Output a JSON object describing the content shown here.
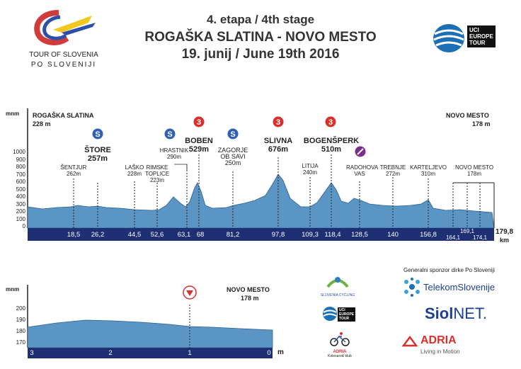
{
  "header": {
    "line1": "4. etapa / 4th stage",
    "line2": "ROGAŠKA SLATINA - NOVO MESTO",
    "line3": "19. junij / June 19th 2016",
    "tour_logo_line1": "TOUR OF SLOVENIA",
    "tour_logo_line2": "PO SLOVENIJI",
    "uci_logo_line1": "UCI",
    "uci_logo_line2": "EUROPE",
    "uci_logo_line3": "TOUR"
  },
  "profile": {
    "unit_label": "mnm",
    "y_ticks": [
      "1000",
      "900",
      "800",
      "700",
      "600",
      "500",
      "400",
      "300",
      "200",
      "100",
      "0"
    ],
    "start_name": "ROGAŠKA SLATINA",
    "start_alt": "228 m",
    "finish_name": "NOVO MESTO",
    "finish_alt": "178 m",
    "total_km": "179,8",
    "km_unit": "km",
    "km_marks": [
      "18,5",
      "26,2",
      "44,5",
      "52,6",
      "63,1",
      "68",
      "81,2",
      "97,8",
      "109,3",
      "118,4",
      "128,5",
      "140",
      "156,8"
    ],
    "km_marks_small": [
      "164,1",
      "169,1",
      "174,1"
    ],
    "places": [
      {
        "name": "ŠENTJUR",
        "alt": "262m"
      },
      {
        "name": "ŠTORE",
        "alt": "257m"
      },
      {
        "name": "LAŠKO",
        "alt": "228m"
      },
      {
        "name": "RIMSKE TOPLICE",
        "alt": "223m"
      },
      {
        "name": "HRASTNIK",
        "alt": "290m"
      },
      {
        "name": "BOBEN",
        "alt": "529m"
      },
      {
        "name": "ZAGORJE OB SAVI",
        "alt": "250m"
      },
      {
        "name": "SLIVNA",
        "alt": "676m"
      },
      {
        "name": "LITIJA",
        "alt": "240m"
      },
      {
        "name": "BOGENŠPERK",
        "alt": "510m"
      },
      {
        "name": "RADOHOVA VAS",
        "alt": ""
      },
      {
        "name": "TREBNJE",
        "alt": "272m"
      },
      {
        "name": "KARTELJEVO",
        "alt": "310m"
      },
      {
        "name": "NOVO MESTO",
        "alt": "178m"
      }
    ]
  },
  "finish_profile": {
    "unit_label": "mnm",
    "y_ticks": [
      "200",
      "190",
      "180",
      "170"
    ],
    "finish_name": "NOVO MESTO",
    "finish_alt": "178 m",
    "km_marks": [
      "3",
      "2",
      "1",
      "0"
    ],
    "km_unit": "m"
  },
  "sponsors": {
    "general_label": "Generalni sponzor dirke Po Sloveniji",
    "telekom": "TelekomSlovenije",
    "siol": "Siol",
    "siol2": "NET.",
    "adria": "ADRIA",
    "adria_tagline": "Living in Motion",
    "cycling_assoc": "SLOVENIA CYCLING",
    "kolesarski": "Kolesarski klub",
    "adria_small": "ADRIA",
    "uci_small1": "UCI",
    "uci_small2": "EUROPE",
    "uci_small3": "TOUR"
  },
  "colors": {
    "profile_fill": "#5b95c4",
    "profile_dark": "#1f3f7f",
    "axis_bar": "#1e2f73",
    "kom_red": "#d9302c",
    "sprint_blue": "#2f60b8",
    "feed_purple": "#7b2d8c"
  }
}
